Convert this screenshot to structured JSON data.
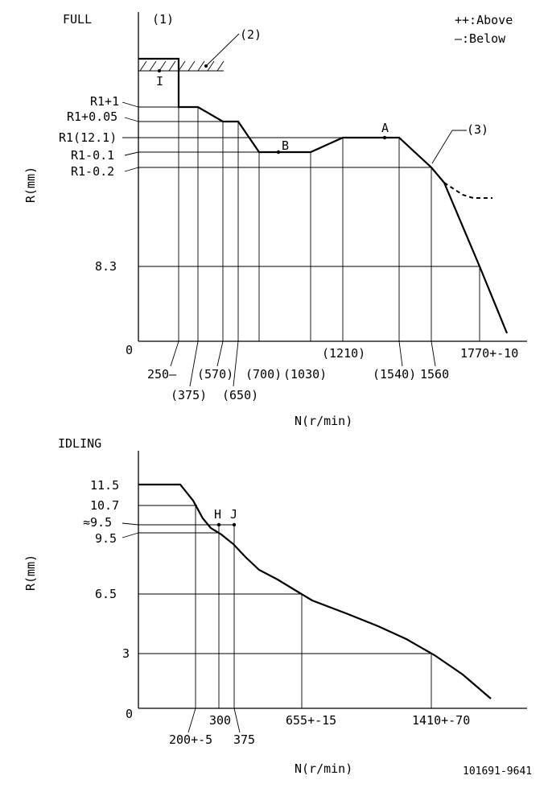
{
  "full": {
    "section_label": "FULL",
    "note_1": "(1)",
    "note_2": "(2)",
    "note_3": "(3)",
    "stop_marker": "I",
    "legend_above": "++:Above",
    "legend_below": "—:Below",
    "y_axis_label": "R(mm)",
    "x_axis_label": "N(r/min)",
    "y_ticks": [
      "R1+1",
      "R1+0.05",
      "R1(12.1)",
      "R1-0.1",
      "R1-0.2",
      "8.3",
      "0"
    ],
    "x_ticks": [
      "250—",
      "(375)",
      "(570)",
      "(650)",
      "(700)",
      "(1030)",
      "(1210)",
      "(1540)",
      "1560",
      "1770+-10"
    ],
    "point_a": "A",
    "point_b": "B"
  },
  "idling": {
    "section_label": "IDLING",
    "y_axis_label": "R(mm)",
    "x_axis_label": "N(r/min)",
    "y_ticks": [
      "11.5",
      "10.7",
      "≈9.5",
      "9.5",
      "6.5",
      "3",
      "0"
    ],
    "x_ticks": [
      "200+-5",
      "300",
      "375",
      "655+-15",
      "1410+-70"
    ],
    "point_h": "H",
    "point_j": "J"
  },
  "doc_id": "101691-9641"
}
